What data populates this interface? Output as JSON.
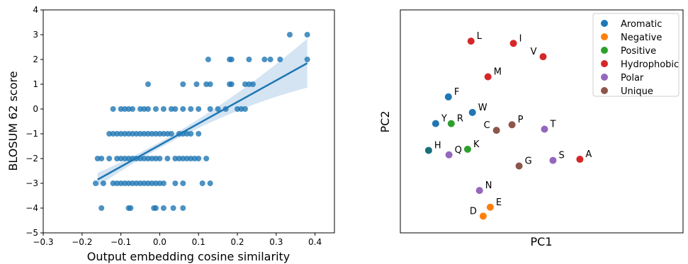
{
  "chart_data": [
    {
      "type": "scatter",
      "title": "",
      "xlabel": "Output embedding cosine similarity",
      "ylabel": "BLOSUM 62 score",
      "xlim": [
        -0.3,
        0.45
      ],
      "ylim": [
        -5,
        4
      ],
      "xticks": [
        "−0.3",
        "−0.2",
        "−0.1",
        "0.0",
        "0.1",
        "0.2",
        "0.3",
        "0.4"
      ],
      "yticks": [
        "4",
        "3",
        "2",
        "1",
        "0",
        "−1",
        "−2",
        "−3",
        "−4",
        "−5"
      ],
      "point_color": "#1f77b4",
      "regression": {
        "x": [
          -0.16,
          0.38
        ],
        "y": [
          -2.85,
          1.85
        ],
        "color": "#1f77b4",
        "band_color": "#c6dbef"
      },
      "points": [
        {
          "x": 0.335,
          "y": 3
        },
        {
          "x": 0.38,
          "y": 3
        },
        {
          "x": 0.125,
          "y": 2
        },
        {
          "x": 0.18,
          "y": 2
        },
        {
          "x": 0.185,
          "y": 2
        },
        {
          "x": 0.23,
          "y": 2
        },
        {
          "x": 0.27,
          "y": 2
        },
        {
          "x": 0.285,
          "y": 2
        },
        {
          "x": 0.31,
          "y": 2
        },
        {
          "x": 0.38,
          "y": 2
        },
        {
          "x": -0.03,
          "y": 1
        },
        {
          "x": 0.06,
          "y": 1
        },
        {
          "x": 0.095,
          "y": 1
        },
        {
          "x": 0.12,
          "y": 1
        },
        {
          "x": 0.13,
          "y": 1
        },
        {
          "x": 0.18,
          "y": 1
        },
        {
          "x": 0.185,
          "y": 1
        },
        {
          "x": 0.22,
          "y": 1
        },
        {
          "x": 0.23,
          "y": 1
        },
        {
          "x": 0.24,
          "y": 1
        },
        {
          "x": -0.12,
          "y": 0
        },
        {
          "x": -0.1,
          "y": 0
        },
        {
          "x": -0.09,
          "y": 0
        },
        {
          "x": -0.08,
          "y": 0
        },
        {
          "x": -0.07,
          "y": 0
        },
        {
          "x": -0.05,
          "y": 0
        },
        {
          "x": -0.04,
          "y": 0
        },
        {
          "x": -0.03,
          "y": 0
        },
        {
          "x": -0.01,
          "y": 0
        },
        {
          "x": 0.01,
          "y": 0
        },
        {
          "x": 0.03,
          "y": 0
        },
        {
          "x": 0.04,
          "y": 0
        },
        {
          "x": 0.06,
          "y": 0
        },
        {
          "x": 0.08,
          "y": 0
        },
        {
          "x": 0.1,
          "y": 0
        },
        {
          "x": 0.13,
          "y": 0
        },
        {
          "x": 0.15,
          "y": 0
        },
        {
          "x": 0.17,
          "y": 0
        },
        {
          "x": 0.2,
          "y": 0
        },
        {
          "x": 0.21,
          "y": 0
        },
        {
          "x": 0.22,
          "y": 0
        },
        {
          "x": -0.13,
          "y": -1
        },
        {
          "x": -0.12,
          "y": -1
        },
        {
          "x": -0.11,
          "y": -1
        },
        {
          "x": -0.1,
          "y": -1
        },
        {
          "x": -0.09,
          "y": -1
        },
        {
          "x": -0.08,
          "y": -1
        },
        {
          "x": -0.07,
          "y": -1
        },
        {
          "x": -0.06,
          "y": -1
        },
        {
          "x": -0.05,
          "y": -1
        },
        {
          "x": -0.04,
          "y": -1
        },
        {
          "x": -0.03,
          "y": -1
        },
        {
          "x": -0.02,
          "y": -1
        },
        {
          "x": -0.01,
          "y": -1
        },
        {
          "x": 0.0,
          "y": -1
        },
        {
          "x": 0.01,
          "y": -1
        },
        {
          "x": 0.02,
          "y": -1
        },
        {
          "x": 0.03,
          "y": -1
        },
        {
          "x": 0.05,
          "y": -1
        },
        {
          "x": 0.06,
          "y": -1
        },
        {
          "x": 0.07,
          "y": -1
        },
        {
          "x": 0.08,
          "y": -1
        },
        {
          "x": 0.1,
          "y": -1
        },
        {
          "x": -0.16,
          "y": -2
        },
        {
          "x": -0.15,
          "y": -2
        },
        {
          "x": -0.13,
          "y": -2
        },
        {
          "x": -0.11,
          "y": -2
        },
        {
          "x": -0.1,
          "y": -2
        },
        {
          "x": -0.09,
          "y": -2
        },
        {
          "x": -0.08,
          "y": -2
        },
        {
          "x": -0.07,
          "y": -2
        },
        {
          "x": -0.06,
          "y": -2
        },
        {
          "x": -0.05,
          "y": -2
        },
        {
          "x": -0.04,
          "y": -2
        },
        {
          "x": -0.03,
          "y": -2
        },
        {
          "x": -0.02,
          "y": -2
        },
        {
          "x": -0.01,
          "y": -2
        },
        {
          "x": 0.0,
          "y": -2
        },
        {
          "x": 0.02,
          "y": -2
        },
        {
          "x": 0.04,
          "y": -2
        },
        {
          "x": 0.05,
          "y": -2
        },
        {
          "x": 0.06,
          "y": -2
        },
        {
          "x": 0.07,
          "y": -2
        },
        {
          "x": 0.08,
          "y": -2
        },
        {
          "x": 0.09,
          "y": -2
        },
        {
          "x": 0.1,
          "y": -2
        },
        {
          "x": 0.12,
          "y": -2
        },
        {
          "x": -0.165,
          "y": -3
        },
        {
          "x": -0.145,
          "y": -3
        },
        {
          "x": -0.12,
          "y": -3
        },
        {
          "x": -0.11,
          "y": -3
        },
        {
          "x": -0.1,
          "y": -3
        },
        {
          "x": -0.09,
          "y": -3
        },
        {
          "x": -0.08,
          "y": -3
        },
        {
          "x": -0.07,
          "y": -3
        },
        {
          "x": -0.06,
          "y": -3
        },
        {
          "x": -0.05,
          "y": -3
        },
        {
          "x": -0.04,
          "y": -3
        },
        {
          "x": -0.03,
          "y": -3
        },
        {
          "x": -0.02,
          "y": -3
        },
        {
          "x": -0.01,
          "y": -3
        },
        {
          "x": 0.0,
          "y": -3
        },
        {
          "x": 0.01,
          "y": -3
        },
        {
          "x": 0.04,
          "y": -3
        },
        {
          "x": 0.06,
          "y": -3
        },
        {
          "x": 0.11,
          "y": -3
        },
        {
          "x": 0.13,
          "y": -3
        },
        {
          "x": -0.15,
          "y": -4
        },
        {
          "x": -0.08,
          "y": -4
        },
        {
          "x": -0.075,
          "y": -4
        },
        {
          "x": -0.015,
          "y": -4
        },
        {
          "x": -0.01,
          "y": -4
        },
        {
          "x": 0.01,
          "y": -4
        },
        {
          "x": 0.035,
          "y": -4
        },
        {
          "x": 0.06,
          "y": -4
        }
      ]
    },
    {
      "type": "scatter",
      "title": "",
      "xlabel": "PC1",
      "ylabel": "PC2",
      "legend_position": "top-right",
      "legend": [
        {
          "name": "Aromatic",
          "color": "#1f77b4"
        },
        {
          "name": "Negative",
          "color": "#ff7f0e"
        },
        {
          "name": "Positive",
          "color": "#2ca02c"
        },
        {
          "name": "Hydrophobic",
          "color": "#d62728"
        },
        {
          "name": "Polar",
          "color": "#9467bd"
        },
        {
          "name": "Unique",
          "color": "#8c564b"
        }
      ],
      "colors": [
        "#1f77b4",
        "#ff7f0e",
        "#2ca02c",
        "#d62728",
        "#9467bd",
        "#8c564b",
        "#17707a"
      ],
      "points": [
        {
          "label": "L",
          "cls": 3,
          "x": 0.25,
          "y": 0.86
        },
        {
          "label": "I",
          "cls": 3,
          "x": 0.4,
          "y": 0.85
        },
        {
          "label": "V",
          "cls": 3,
          "x": 0.505,
          "y": 0.79
        },
        {
          "label": "M",
          "cls": 3,
          "x": 0.31,
          "y": 0.7
        },
        {
          "label": "F",
          "cls": 0,
          "x": 0.17,
          "y": 0.61
        },
        {
          "label": "W",
          "cls": 0,
          "x": 0.255,
          "y": 0.54
        },
        {
          "label": "Y",
          "cls": 0,
          "x": 0.125,
          "y": 0.49
        },
        {
          "label": "R",
          "cls": 2,
          "x": 0.18,
          "y": 0.49
        },
        {
          "label": "C",
          "cls": 5,
          "x": 0.34,
          "y": 0.46
        },
        {
          "label": "P",
          "cls": 5,
          "x": 0.395,
          "y": 0.485
        },
        {
          "label": "T",
          "cls": 4,
          "x": 0.51,
          "y": 0.465
        },
        {
          "label": "H",
          "cls": 6,
          "x": 0.1,
          "y": 0.37
        },
        {
          "label": "Q",
          "cls": 4,
          "x": 0.172,
          "y": 0.35
        },
        {
          "label": "K",
          "cls": 2,
          "x": 0.238,
          "y": 0.375
        },
        {
          "label": "G",
          "cls": 5,
          "x": 0.42,
          "y": 0.3
        },
        {
          "label": "S",
          "cls": 4,
          "x": 0.54,
          "y": 0.325
        },
        {
          "label": "A",
          "cls": 3,
          "x": 0.635,
          "y": 0.33
        },
        {
          "label": "N",
          "cls": 4,
          "x": 0.28,
          "y": 0.19
        },
        {
          "label": "E",
          "cls": 1,
          "x": 0.318,
          "y": 0.115
        },
        {
          "label": "D",
          "cls": 1,
          "x": 0.293,
          "y": 0.075
        }
      ]
    }
  ]
}
